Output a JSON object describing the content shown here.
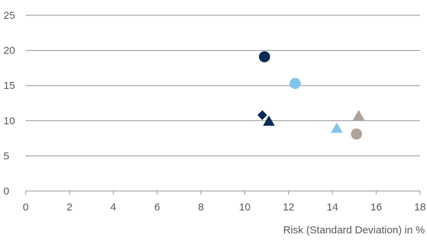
{
  "chart_data": {
    "type": "scatter",
    "title": "",
    "xlabel": "Risk (Standard Deviation) in %",
    "ylabel": "",
    "xlim": [
      0,
      18
    ],
    "ylim": [
      0,
      25
    ],
    "x_ticks": [
      0,
      2,
      4,
      6,
      8,
      10,
      12,
      14,
      16,
      18
    ],
    "y_ticks": [
      0,
      5,
      10,
      15,
      20,
      25
    ],
    "grid": "horizontal",
    "legend": "none",
    "points": [
      {
        "x": 10.9,
        "y": 19.1,
        "shape": "circle",
        "color": "#0b2a55"
      },
      {
        "x": 12.3,
        "y": 15.3,
        "shape": "circle",
        "color": "#82c3ea"
      },
      {
        "x": 10.8,
        "y": 10.8,
        "shape": "diamond",
        "color": "#0b2a55"
      },
      {
        "x": 11.1,
        "y": 9.9,
        "shape": "triangle",
        "color": "#0b2a55"
      },
      {
        "x": 14.2,
        "y": 8.9,
        "shape": "triangle",
        "color": "#82c3ea"
      },
      {
        "x": 15.2,
        "y": 10.7,
        "shape": "triangle",
        "color": "#aea39a"
      },
      {
        "x": 15.1,
        "y": 8.1,
        "shape": "circle",
        "color": "#aea39a"
      }
    ]
  }
}
